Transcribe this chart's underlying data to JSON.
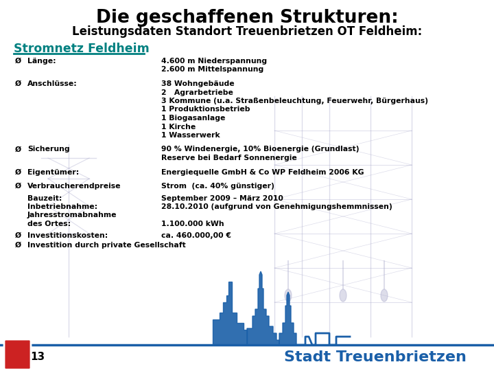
{
  "title": "Die geschaffenen Strukturen:",
  "subtitle": "Leistungsdaten Standort Treuenbrietzen OT Feldheim:",
  "section_title": "Stromnetz Feldheim",
  "section_title_color": "#008080",
  "bg_color": "#ffffff",
  "title_color": "#000000",
  "subtitle_color": "#000000",
  "body_color": "#000000",
  "bullet": "Ø",
  "rows": [
    {
      "label": "Länge:",
      "values": [
        "4.600 m Niederspannung",
        "2.600 m Mittelspannung"
      ]
    },
    {
      "label": "Anschlüsse:",
      "values": [
        "38 Wohngebäude",
        "2   Agrarbetriebe",
        "3 Kommune (u.a. Straßenbeleuchtung, Feuerwehr, Bürgerhaus)",
        "1 Produktionsbetrieb",
        "1 Biogasanlage",
        "1 Kirche",
        "1 Wasserwerk"
      ]
    },
    {
      "label": "Sicherung",
      "values": [
        "90 % Windenergie, 10% Bioenergie (Grundlast)",
        "Reserve bei Bedarf Sonnenergie"
      ]
    },
    {
      "label": "Eigentümer:",
      "values": [
        "Energiequelle GmbH & Co WP Feldheim 2006 KG"
      ]
    },
    {
      "label": "Verbraucherendpreise",
      "values": [
        "Strom  (ca. 40% günstiger)"
      ]
    },
    {
      "label_block": [
        "Bauzeit:",
        "Inbetriebnahme:",
        "Jahresstromabnahme",
        "des Ortes:"
      ],
      "values": [
        "September 2009 – März 2010",
        "28.10.2010 (aufgrund von Genehmigungshemmnissen)",
        "",
        "1.100.000 kWh"
      ]
    },
    {
      "label": "Investitionskosten:",
      "values": [
        "ca. 460.000,00 €"
      ]
    },
    {
      "label": "Investition durch private Gesellschaft",
      "values": []
    }
  ],
  "footer_page": "13",
  "footer_city": "Stadt Treuenbrietzen",
  "footer_line_color": "#1a5fa8",
  "footer_city_color": "#1a5fa8",
  "underline_color": "#008080",
  "skyline_color": "#1a5fa8",
  "powerline_color": "#aaaacc"
}
